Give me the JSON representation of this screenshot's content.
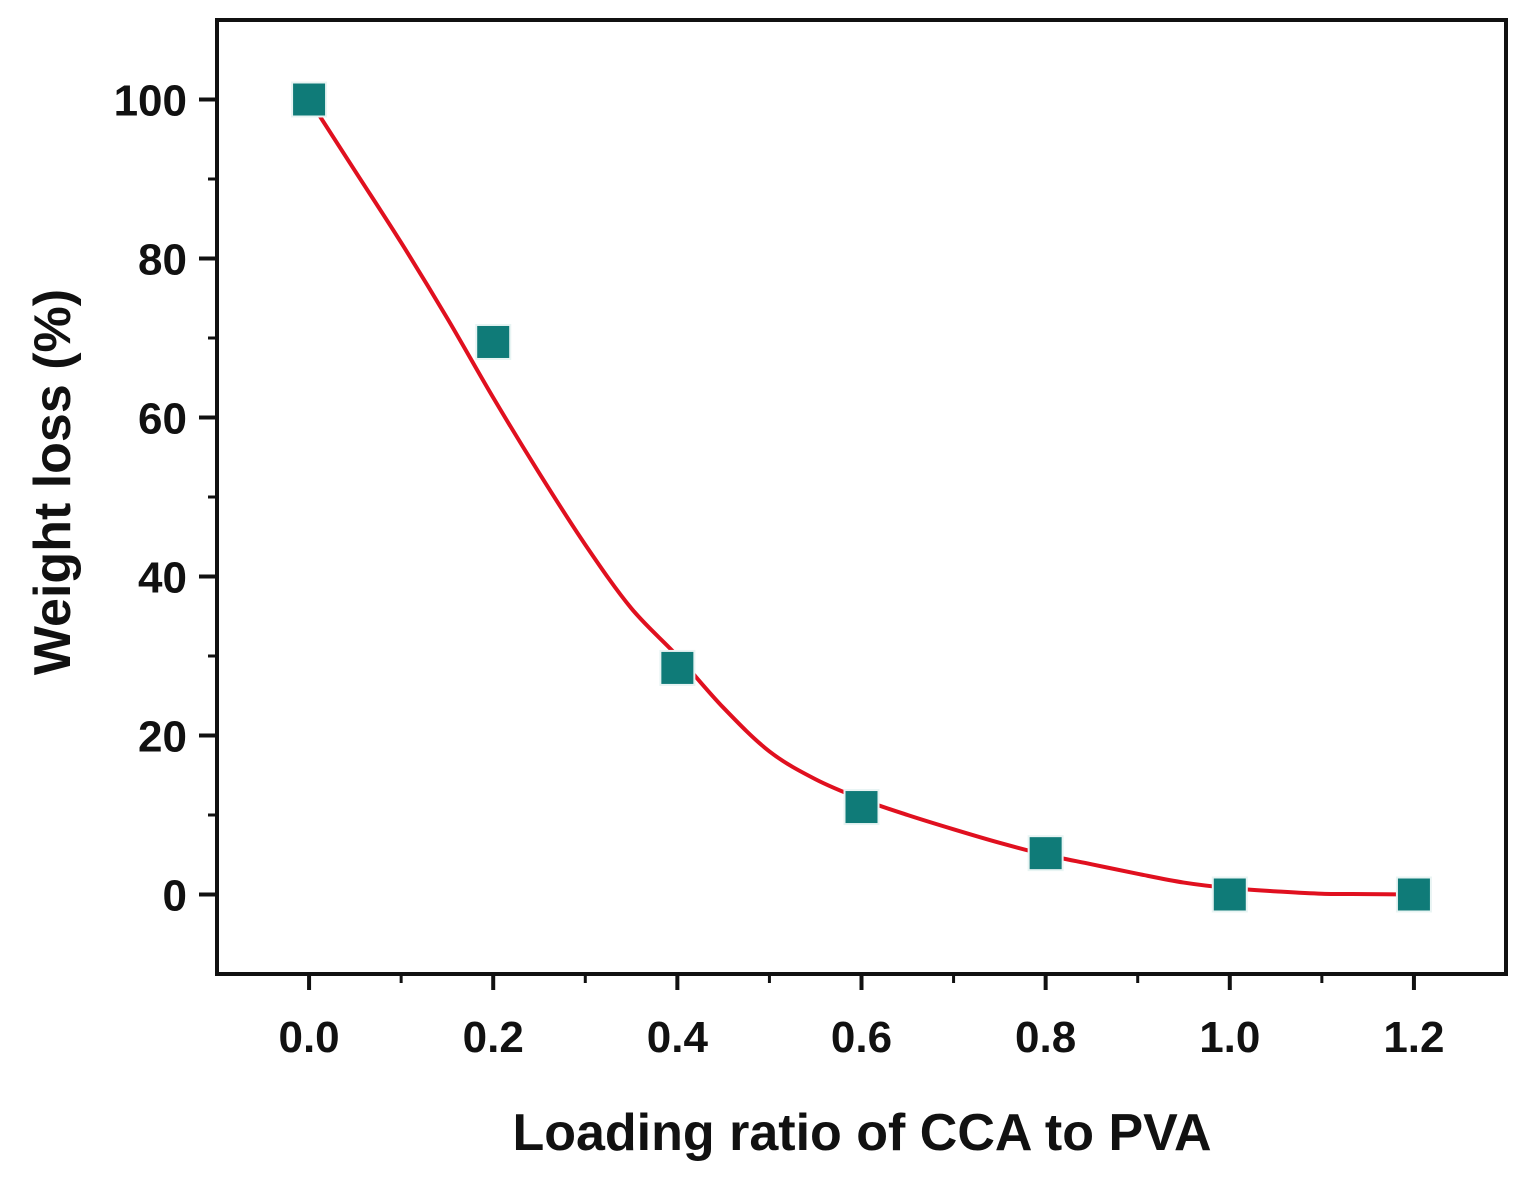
{
  "chart_data": {
    "type": "scatter",
    "title": "",
    "xlabel": "Loading ratio of CCA to PVA",
    "ylabel": "Weight loss (%)",
    "xlim": [
      -0.1,
      1.3
    ],
    "ylim": [
      -10,
      110
    ],
    "x_ticks": [
      0.0,
      0.2,
      0.4,
      0.6,
      0.8,
      1.0,
      1.2
    ],
    "x_tick_labels": [
      "0.0",
      "0.2",
      "0.4",
      "0.6",
      "0.8",
      "1.0",
      "1.2"
    ],
    "y_ticks": [
      0,
      20,
      40,
      60,
      80,
      100
    ],
    "y_tick_labels": [
      "0",
      "20",
      "40",
      "60",
      "80",
      "100"
    ],
    "grid": false,
    "series": [
      {
        "marker": "square",
        "color": "#0f7b78",
        "x": [
          0.0,
          0.2,
          0.4,
          0.6,
          0.8,
          1.0,
          1.2
        ],
        "y": [
          100,
          69.5,
          28.5,
          11,
          5.2,
          0,
          0
        ]
      }
    ],
    "fit_curve": {
      "color": "#e0101f",
      "x": [
        0.0,
        0.05,
        0.1,
        0.15,
        0.2,
        0.25,
        0.3,
        0.35,
        0.4,
        0.45,
        0.5,
        0.55,
        0.6,
        0.65,
        0.7,
        0.75,
        0.8,
        0.85,
        0.9,
        0.95,
        1.0,
        1.05,
        1.1,
        1.15,
        1.2
      ],
      "y": [
        100,
        91,
        82,
        72.5,
        62.5,
        53,
        44,
        36,
        30,
        23.5,
        18,
        14.5,
        12,
        10,
        8.2,
        6.5,
        5,
        3.8,
        2.6,
        1.5,
        0.8,
        0.4,
        0.1,
        0.05,
        0
      ]
    }
  }
}
